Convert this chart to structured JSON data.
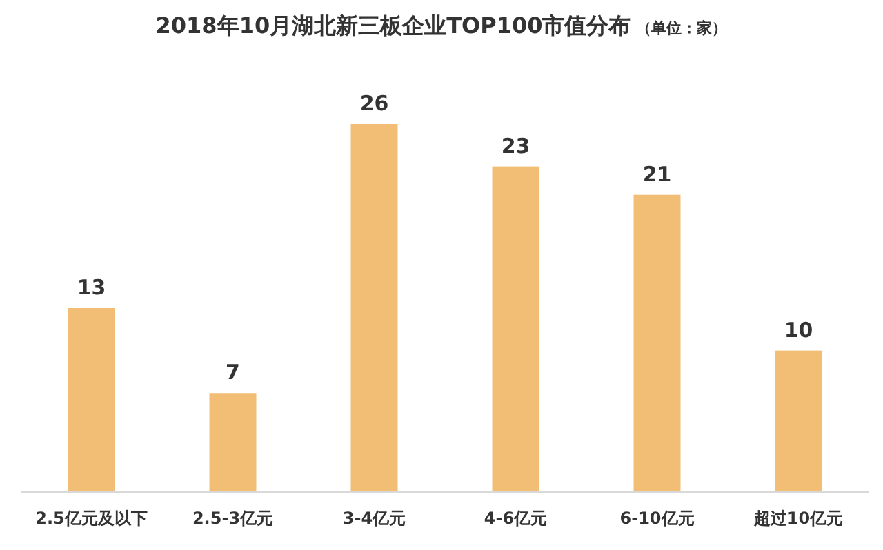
{
  "chart_data": {
    "type": "bar",
    "title": "2018年10月湖北新三板企业TOP100市值分布",
    "subtitle": "（单位：家）",
    "categories": [
      "2.5亿元及以下",
      "2.5-3亿元",
      "3-4亿元",
      "4-6亿元",
      "6-10亿元",
      "超过10亿元"
    ],
    "values": [
      13,
      7,
      26,
      23,
      21,
      10
    ],
    "color": "#f2be76",
    "data_labels": true
  }
}
